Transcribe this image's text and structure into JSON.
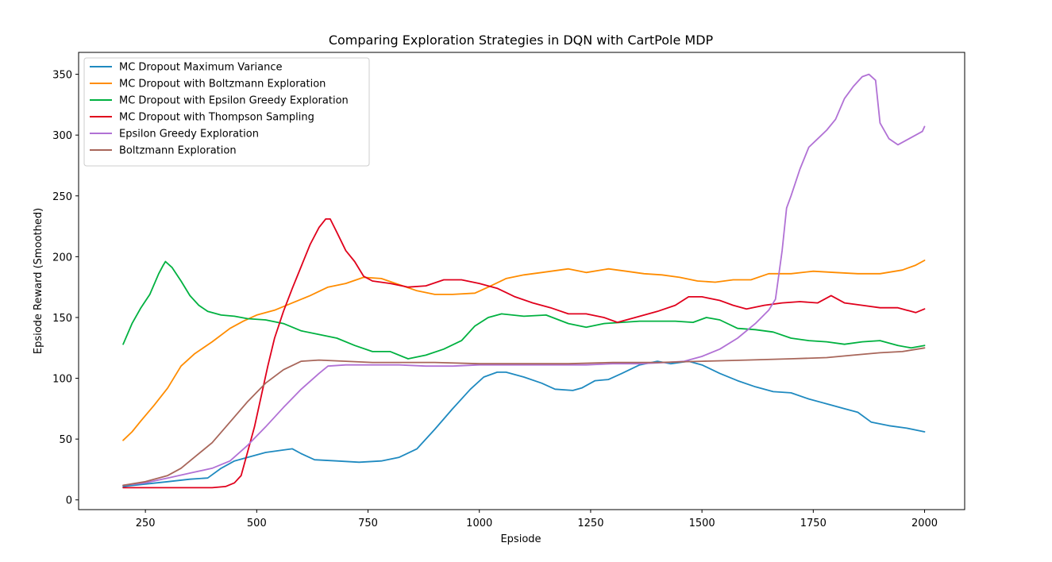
{
  "chart_data": {
    "type": "line",
    "title": "Comparing Exploration Strategies in DQN with CartPole MDP",
    "xlabel": "Epsiode",
    "ylabel": "Epsiode Reward (Smoothed)",
    "xlim": [
      100,
      2090
    ],
    "ylim": [
      -8,
      368
    ],
    "xticks": [
      250,
      500,
      750,
      1000,
      1250,
      1500,
      1750,
      2000
    ],
    "yticks": [
      0,
      50,
      100,
      150,
      200,
      250,
      300,
      350
    ],
    "grid": false,
    "legend_position": "top-left",
    "series": [
      {
        "name": "MC Dropout Maximum Variance",
        "color": "#1f8ac0",
        "points": [
          [
            200,
            11
          ],
          [
            250,
            13
          ],
          [
            300,
            15
          ],
          [
            350,
            17
          ],
          [
            390,
            18
          ],
          [
            420,
            26
          ],
          [
            450,
            32
          ],
          [
            480,
            35
          ],
          [
            520,
            39
          ],
          [
            560,
            41
          ],
          [
            580,
            42
          ],
          [
            600,
            38
          ],
          [
            630,
            33
          ],
          [
            680,
            32
          ],
          [
            730,
            31
          ],
          [
            780,
            32
          ],
          [
            820,
            35
          ],
          [
            860,
            42
          ],
          [
            900,
            58
          ],
          [
            940,
            75
          ],
          [
            980,
            91
          ],
          [
            1010,
            101
          ],
          [
            1040,
            105
          ],
          [
            1060,
            105
          ],
          [
            1100,
            101
          ],
          [
            1140,
            96
          ],
          [
            1170,
            91
          ],
          [
            1210,
            90
          ],
          [
            1230,
            92
          ],
          [
            1260,
            98
          ],
          [
            1290,
            99
          ],
          [
            1320,
            104
          ],
          [
            1360,
            111
          ],
          [
            1400,
            114
          ],
          [
            1430,
            112
          ],
          [
            1470,
            114
          ],
          [
            1500,
            111
          ],
          [
            1540,
            104
          ],
          [
            1580,
            98
          ],
          [
            1620,
            93
          ],
          [
            1660,
            89
          ],
          [
            1700,
            88
          ],
          [
            1740,
            83
          ],
          [
            1780,
            79
          ],
          [
            1820,
            75
          ],
          [
            1850,
            72
          ],
          [
            1880,
            64
          ],
          [
            1920,
            61
          ],
          [
            1960,
            59
          ],
          [
            2000,
            56
          ]
        ]
      },
      {
        "name": "MC Dropout with Boltzmann Exploration",
        "color": "#ff8c00",
        "points": [
          [
            200,
            49
          ],
          [
            220,
            56
          ],
          [
            240,
            65
          ],
          [
            270,
            78
          ],
          [
            300,
            92
          ],
          [
            330,
            110
          ],
          [
            360,
            120
          ],
          [
            400,
            130
          ],
          [
            440,
            141
          ],
          [
            470,
            147
          ],
          [
            500,
            152
          ],
          [
            540,
            156
          ],
          [
            580,
            162
          ],
          [
            620,
            168
          ],
          [
            660,
            175
          ],
          [
            700,
            178
          ],
          [
            740,
            183
          ],
          [
            780,
            182
          ],
          [
            820,
            177
          ],
          [
            860,
            172
          ],
          [
            900,
            169
          ],
          [
            940,
            169
          ],
          [
            990,
            170
          ],
          [
            1020,
            175
          ],
          [
            1060,
            182
          ],
          [
            1100,
            185
          ],
          [
            1140,
            187
          ],
          [
            1200,
            190
          ],
          [
            1240,
            187
          ],
          [
            1290,
            190
          ],
          [
            1330,
            188
          ],
          [
            1370,
            186
          ],
          [
            1410,
            185
          ],
          [
            1450,
            183
          ],
          [
            1490,
            180
          ],
          [
            1530,
            179
          ],
          [
            1570,
            181
          ],
          [
            1610,
            181
          ],
          [
            1650,
            186
          ],
          [
            1700,
            186
          ],
          [
            1750,
            188
          ],
          [
            1800,
            187
          ],
          [
            1850,
            186
          ],
          [
            1900,
            186
          ],
          [
            1950,
            189
          ],
          [
            1980,
            193
          ],
          [
            2000,
            197
          ]
        ]
      },
      {
        "name": "MC Dropout with Epsilon Greedy Exploration",
        "color": "#00b140",
        "points": [
          [
            200,
            128
          ],
          [
            220,
            145
          ],
          [
            240,
            158
          ],
          [
            260,
            169
          ],
          [
            280,
            186
          ],
          [
            290,
            193
          ],
          [
            295,
            196
          ],
          [
            310,
            191
          ],
          [
            330,
            180
          ],
          [
            350,
            168
          ],
          [
            370,
            160
          ],
          [
            390,
            155
          ],
          [
            420,
            152
          ],
          [
            450,
            151
          ],
          [
            480,
            149
          ],
          [
            520,
            148
          ],
          [
            560,
            145
          ],
          [
            600,
            139
          ],
          [
            640,
            136
          ],
          [
            680,
            133
          ],
          [
            720,
            127
          ],
          [
            760,
            122
          ],
          [
            800,
            122
          ],
          [
            840,
            116
          ],
          [
            880,
            119
          ],
          [
            920,
            124
          ],
          [
            960,
            131
          ],
          [
            990,
            143
          ],
          [
            1020,
            150
          ],
          [
            1050,
            153
          ],
          [
            1100,
            151
          ],
          [
            1150,
            152
          ],
          [
            1200,
            145
          ],
          [
            1240,
            142
          ],
          [
            1280,
            145
          ],
          [
            1320,
            146
          ],
          [
            1360,
            147
          ],
          [
            1400,
            147
          ],
          [
            1440,
            147
          ],
          [
            1480,
            146
          ],
          [
            1510,
            150
          ],
          [
            1540,
            148
          ],
          [
            1580,
            141
          ],
          [
            1620,
            140
          ],
          [
            1660,
            138
          ],
          [
            1700,
            133
          ],
          [
            1740,
            131
          ],
          [
            1780,
            130
          ],
          [
            1820,
            128
          ],
          [
            1860,
            130
          ],
          [
            1900,
            131
          ],
          [
            1940,
            127
          ],
          [
            1970,
            125
          ],
          [
            2000,
            127
          ]
        ]
      },
      {
        "name": "MC Dropout with Thompson Sampling",
        "color": "#e0001c",
        "points": [
          [
            200,
            10
          ],
          [
            300,
            10
          ],
          [
            400,
            10
          ],
          [
            430,
            11
          ],
          [
            450,
            14
          ],
          [
            465,
            20
          ],
          [
            480,
            40
          ],
          [
            495,
            60
          ],
          [
            510,
            85
          ],
          [
            525,
            110
          ],
          [
            540,
            133
          ],
          [
            560,
            155
          ],
          [
            580,
            174
          ],
          [
            600,
            192
          ],
          [
            620,
            210
          ],
          [
            640,
            224
          ],
          [
            655,
            231
          ],
          [
            665,
            231
          ],
          [
            680,
            220
          ],
          [
            700,
            205
          ],
          [
            720,
            196
          ],
          [
            740,
            184
          ],
          [
            760,
            180
          ],
          [
            800,
            178
          ],
          [
            840,
            175
          ],
          [
            880,
            176
          ],
          [
            920,
            181
          ],
          [
            960,
            181
          ],
          [
            1000,
            178
          ],
          [
            1040,
            174
          ],
          [
            1080,
            167
          ],
          [
            1120,
            162
          ],
          [
            1160,
            158
          ],
          [
            1200,
            153
          ],
          [
            1240,
            153
          ],
          [
            1280,
            150
          ],
          [
            1310,
            146
          ],
          [
            1350,
            150
          ],
          [
            1400,
            155
          ],
          [
            1440,
            160
          ],
          [
            1470,
            167
          ],
          [
            1500,
            167
          ],
          [
            1540,
            164
          ],
          [
            1570,
            160
          ],
          [
            1600,
            157
          ],
          [
            1640,
            160
          ],
          [
            1680,
            162
          ],
          [
            1720,
            163
          ],
          [
            1760,
            162
          ],
          [
            1790,
            168
          ],
          [
            1820,
            162
          ],
          [
            1860,
            160
          ],
          [
            1900,
            158
          ],
          [
            1940,
            158
          ],
          [
            1980,
            154
          ],
          [
            2000,
            157
          ]
        ]
      },
      {
        "name": "Epsilon Greedy Exploration",
        "color": "#b171d5",
        "points": [
          [
            200,
            12
          ],
          [
            250,
            14
          ],
          [
            300,
            18
          ],
          [
            350,
            22
          ],
          [
            400,
            26
          ],
          [
            440,
            32
          ],
          [
            480,
            45
          ],
          [
            520,
            60
          ],
          [
            560,
            76
          ],
          [
            600,
            91
          ],
          [
            640,
            104
          ],
          [
            660,
            110
          ],
          [
            700,
            111
          ],
          [
            760,
            111
          ],
          [
            820,
            111
          ],
          [
            880,
            110
          ],
          [
            940,
            110
          ],
          [
            1000,
            111
          ],
          [
            1060,
            111
          ],
          [
            1120,
            111
          ],
          [
            1180,
            111
          ],
          [
            1240,
            111
          ],
          [
            1300,
            112
          ],
          [
            1360,
            112
          ],
          [
            1420,
            113
          ],
          [
            1460,
            114
          ],
          [
            1500,
            118
          ],
          [
            1540,
            124
          ],
          [
            1580,
            133
          ],
          [
            1620,
            145
          ],
          [
            1650,
            156
          ],
          [
            1665,
            165
          ],
          [
            1680,
            205
          ],
          [
            1690,
            240
          ],
          [
            1700,
            250
          ],
          [
            1720,
            272
          ],
          [
            1740,
            290
          ],
          [
            1760,
            297
          ],
          [
            1780,
            304
          ],
          [
            1800,
            313
          ],
          [
            1820,
            330
          ],
          [
            1840,
            340
          ],
          [
            1860,
            348
          ],
          [
            1875,
            350
          ],
          [
            1890,
            345
          ],
          [
            1900,
            310
          ],
          [
            1920,
            297
          ],
          [
            1940,
            292
          ],
          [
            1960,
            296
          ],
          [
            1980,
            300
          ],
          [
            1995,
            303
          ],
          [
            2000,
            307
          ]
        ]
      },
      {
        "name": "Boltzmann Exploration",
        "color": "#a8665a",
        "points": [
          [
            200,
            12
          ],
          [
            250,
            15
          ],
          [
            300,
            20
          ],
          [
            330,
            26
          ],
          [
            360,
            35
          ],
          [
            400,
            47
          ],
          [
            440,
            64
          ],
          [
            480,
            81
          ],
          [
            520,
            96
          ],
          [
            560,
            107
          ],
          [
            600,
            114
          ],
          [
            640,
            115
          ],
          [
            700,
            114
          ],
          [
            760,
            113
          ],
          [
            820,
            113
          ],
          [
            900,
            113
          ],
          [
            1000,
            112
          ],
          [
            1100,
            112
          ],
          [
            1200,
            112
          ],
          [
            1300,
            113
          ],
          [
            1400,
            113
          ],
          [
            1500,
            114
          ],
          [
            1600,
            115
          ],
          [
            1700,
            116
          ],
          [
            1780,
            117
          ],
          [
            1840,
            119
          ],
          [
            1900,
            121
          ],
          [
            1950,
            122
          ],
          [
            2000,
            125
          ]
        ]
      }
    ]
  }
}
